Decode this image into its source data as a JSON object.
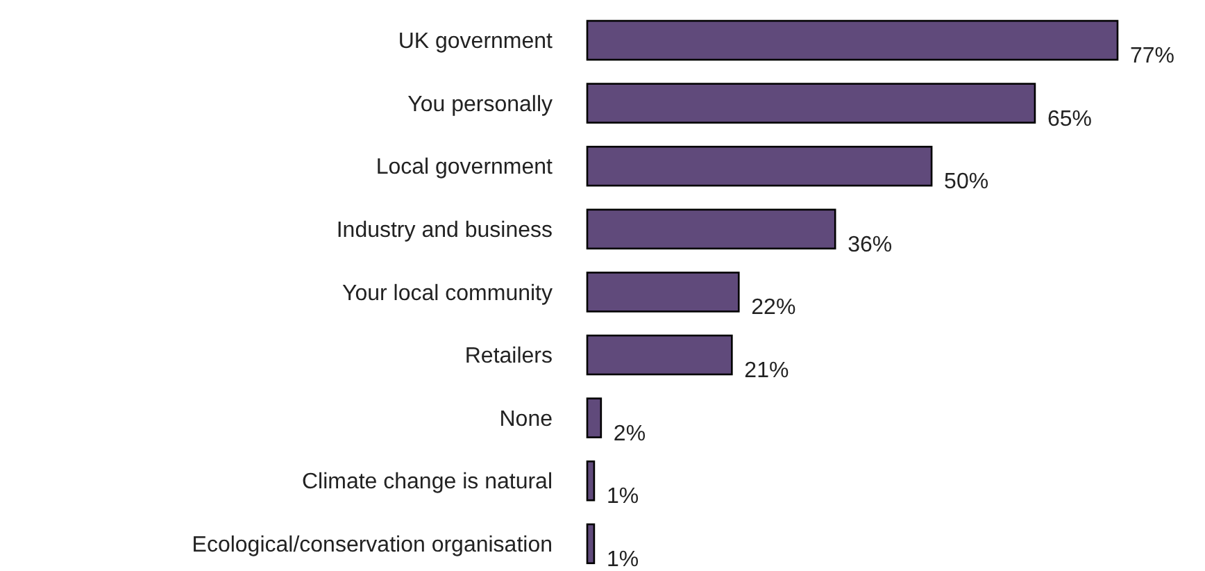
{
  "chart_data": {
    "type": "bar",
    "orientation": "horizontal",
    "categories": [
      "UK government",
      "You personally",
      "Local government",
      "Industry and business",
      "Your local community",
      "Retailers",
      "None",
      "Climate change is natural",
      "Ecological/conservation organisation"
    ],
    "values": [
      77,
      65,
      50,
      36,
      22,
      21,
      2,
      1,
      1
    ],
    "value_labels": [
      "77%",
      "65%",
      "50%",
      "36%",
      "22%",
      "21%",
      "2%",
      "1%",
      "1%"
    ],
    "color": "#604a7b"
  }
}
